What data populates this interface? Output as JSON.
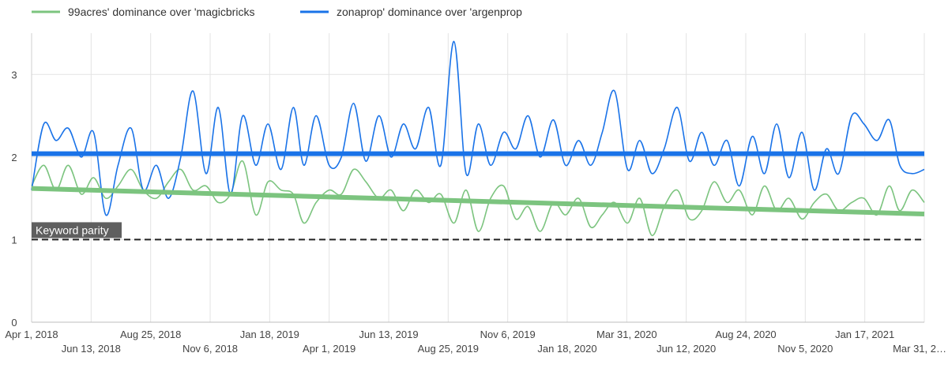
{
  "chart_data": {
    "type": "line",
    "legend_position": "top-left",
    "grid": true,
    "ylim": [
      0,
      3.5
    ],
    "y_ticks": [
      0,
      1,
      2,
      3
    ],
    "x_range": [
      "2018-04-01",
      "2021-03-31"
    ],
    "x_tick_labels": [
      {
        "date": "2018-04-01",
        "label": "Apr 1, 2018",
        "row": 1
      },
      {
        "date": "2018-06-13",
        "label": "Jun 13, 2018",
        "row": 2
      },
      {
        "date": "2018-08-25",
        "label": "Aug 25, 2018",
        "row": 1
      },
      {
        "date": "2018-11-06",
        "label": "Nov 6, 2018",
        "row": 2
      },
      {
        "date": "2019-01-18",
        "label": "Jan 18, 2019",
        "row": 1
      },
      {
        "date": "2019-04-01",
        "label": "Apr 1, 2019",
        "row": 2
      },
      {
        "date": "2019-06-13",
        "label": "Jun 13, 2019",
        "row": 1
      },
      {
        "date": "2019-08-25",
        "label": "Aug 25, 2019",
        "row": 2
      },
      {
        "date": "2019-11-06",
        "label": "Nov 6, 2019",
        "row": 1
      },
      {
        "date": "2020-01-18",
        "label": "Jan 18, 2020",
        "row": 2
      },
      {
        "date": "2020-03-31",
        "label": "Mar 31, 2020",
        "row": 1
      },
      {
        "date": "2020-06-12",
        "label": "Jun 12, 2020",
        "row": 2
      },
      {
        "date": "2020-08-24",
        "label": "Aug 24, 2020",
        "row": 1
      },
      {
        "date": "2020-11-05",
        "label": "Nov 5, 2020",
        "row": 2
      },
      {
        "date": "2021-01-17",
        "label": "Jan 17, 2021",
        "row": 1
      },
      {
        "date": "2021-03-31",
        "label": "Mar 31, 2…",
        "row": 2
      }
    ],
    "series": [
      {
        "name": "99acres' dominance over 'magicbricks",
        "color": "#7cc47f",
        "x": [
          "2018-04-01",
          "2018-04-16",
          "2018-05-01",
          "2018-05-16",
          "2018-06-01",
          "2018-06-16",
          "2018-07-01",
          "2018-07-16",
          "2018-08-01",
          "2018-08-16",
          "2018-09-01",
          "2018-09-16",
          "2018-10-01",
          "2018-10-16",
          "2018-11-01",
          "2018-11-16",
          "2018-12-01",
          "2018-12-16",
          "2019-01-01",
          "2019-01-16",
          "2019-02-01",
          "2019-02-16",
          "2019-03-01",
          "2019-03-16",
          "2019-04-01",
          "2019-04-16",
          "2019-05-01",
          "2019-05-16",
          "2019-06-01",
          "2019-06-16",
          "2019-07-01",
          "2019-07-16",
          "2019-08-01",
          "2019-08-16",
          "2019-09-01",
          "2019-09-16",
          "2019-10-01",
          "2019-10-16",
          "2019-11-01",
          "2019-11-16",
          "2019-12-01",
          "2019-12-16",
          "2020-01-01",
          "2020-01-16",
          "2020-02-01",
          "2020-02-16",
          "2020-03-01",
          "2020-03-16",
          "2020-04-01",
          "2020-04-16",
          "2020-05-01",
          "2020-05-16",
          "2020-06-01",
          "2020-06-16",
          "2020-07-01",
          "2020-07-16",
          "2020-08-01",
          "2020-08-16",
          "2020-09-01",
          "2020-09-16",
          "2020-10-01",
          "2020-10-16",
          "2020-11-01",
          "2020-11-16",
          "2020-12-01",
          "2020-12-16",
          "2021-01-01",
          "2021-01-16",
          "2021-02-01",
          "2021-02-16",
          "2021-03-01",
          "2021-03-16",
          "2021-03-31"
        ],
        "y": [
          1.65,
          1.9,
          1.6,
          1.9,
          1.55,
          1.75,
          1.5,
          1.65,
          1.85,
          1.6,
          1.5,
          1.7,
          1.85,
          1.6,
          1.65,
          1.45,
          1.55,
          1.95,
          1.3,
          1.7,
          1.6,
          1.55,
          1.2,
          1.45,
          1.6,
          1.55,
          1.85,
          1.7,
          1.5,
          1.6,
          1.35,
          1.6,
          1.45,
          1.55,
          1.2,
          1.6,
          1.1,
          1.5,
          1.65,
          1.25,
          1.4,
          1.1,
          1.45,
          1.3,
          1.5,
          1.15,
          1.3,
          1.45,
          1.2,
          1.5,
          1.05,
          1.4,
          1.6,
          1.25,
          1.35,
          1.7,
          1.45,
          1.6,
          1.3,
          1.65,
          1.35,
          1.5,
          1.25,
          1.45,
          1.55,
          1.35,
          1.45,
          1.5,
          1.3,
          1.65,
          1.35,
          1.6,
          1.45
        ],
        "trend": [
          1.62,
          1.31
        ]
      },
      {
        "name": "zonaprop' dominance over 'argenprop",
        "color": "#1a73e8",
        "x": [
          "2018-04-01",
          "2018-04-16",
          "2018-05-01",
          "2018-05-16",
          "2018-06-01",
          "2018-06-16",
          "2018-07-01",
          "2018-07-16",
          "2018-08-01",
          "2018-08-16",
          "2018-09-01",
          "2018-09-16",
          "2018-10-01",
          "2018-10-16",
          "2018-11-01",
          "2018-11-16",
          "2018-12-01",
          "2018-12-16",
          "2019-01-01",
          "2019-01-16",
          "2019-02-01",
          "2019-02-16",
          "2019-03-01",
          "2019-03-16",
          "2019-04-01",
          "2019-04-16",
          "2019-05-01",
          "2019-05-16",
          "2019-06-01",
          "2019-06-16",
          "2019-07-01",
          "2019-07-16",
          "2019-08-01",
          "2019-08-16",
          "2019-09-01",
          "2019-09-16",
          "2019-10-01",
          "2019-10-16",
          "2019-11-01",
          "2019-11-16",
          "2019-12-01",
          "2019-12-16",
          "2020-01-01",
          "2020-01-16",
          "2020-02-01",
          "2020-02-16",
          "2020-03-01",
          "2020-03-16",
          "2020-04-01",
          "2020-04-16",
          "2020-05-01",
          "2020-05-16",
          "2020-06-01",
          "2020-06-16",
          "2020-07-01",
          "2020-07-16",
          "2020-08-01",
          "2020-08-16",
          "2020-09-01",
          "2020-09-16",
          "2020-10-01",
          "2020-10-16",
          "2020-11-01",
          "2020-11-16",
          "2020-12-01",
          "2020-12-16",
          "2021-01-01",
          "2021-01-16",
          "2021-02-01",
          "2021-02-16",
          "2021-03-01",
          "2021-03-16",
          "2021-03-31"
        ],
        "y": [
          1.6,
          2.4,
          2.2,
          2.35,
          2.0,
          2.3,
          1.3,
          1.9,
          2.35,
          1.6,
          1.9,
          1.5,
          2.0,
          2.8,
          1.8,
          2.6,
          1.55,
          2.5,
          1.9,
          2.4,
          1.85,
          2.6,
          1.9,
          2.5,
          1.9,
          2.0,
          2.65,
          1.95,
          2.5,
          2.0,
          2.4,
          2.1,
          2.6,
          1.9,
          3.4,
          1.8,
          2.4,
          1.9,
          2.3,
          2.1,
          2.5,
          2.0,
          2.45,
          1.9,
          2.2,
          1.9,
          2.3,
          2.8,
          1.85,
          2.2,
          1.8,
          2.1,
          2.6,
          1.95,
          2.3,
          1.9,
          2.2,
          1.65,
          2.25,
          1.8,
          2.4,
          1.75,
          2.3,
          1.6,
          2.1,
          1.8,
          2.5,
          2.4,
          2.2,
          2.45,
          1.9,
          1.8,
          1.85
        ],
        "trend": [
          2.04,
          2.04
        ]
      }
    ],
    "reference_line": {
      "y": 1,
      "label": "Keyword parity",
      "color": "#222222"
    }
  }
}
